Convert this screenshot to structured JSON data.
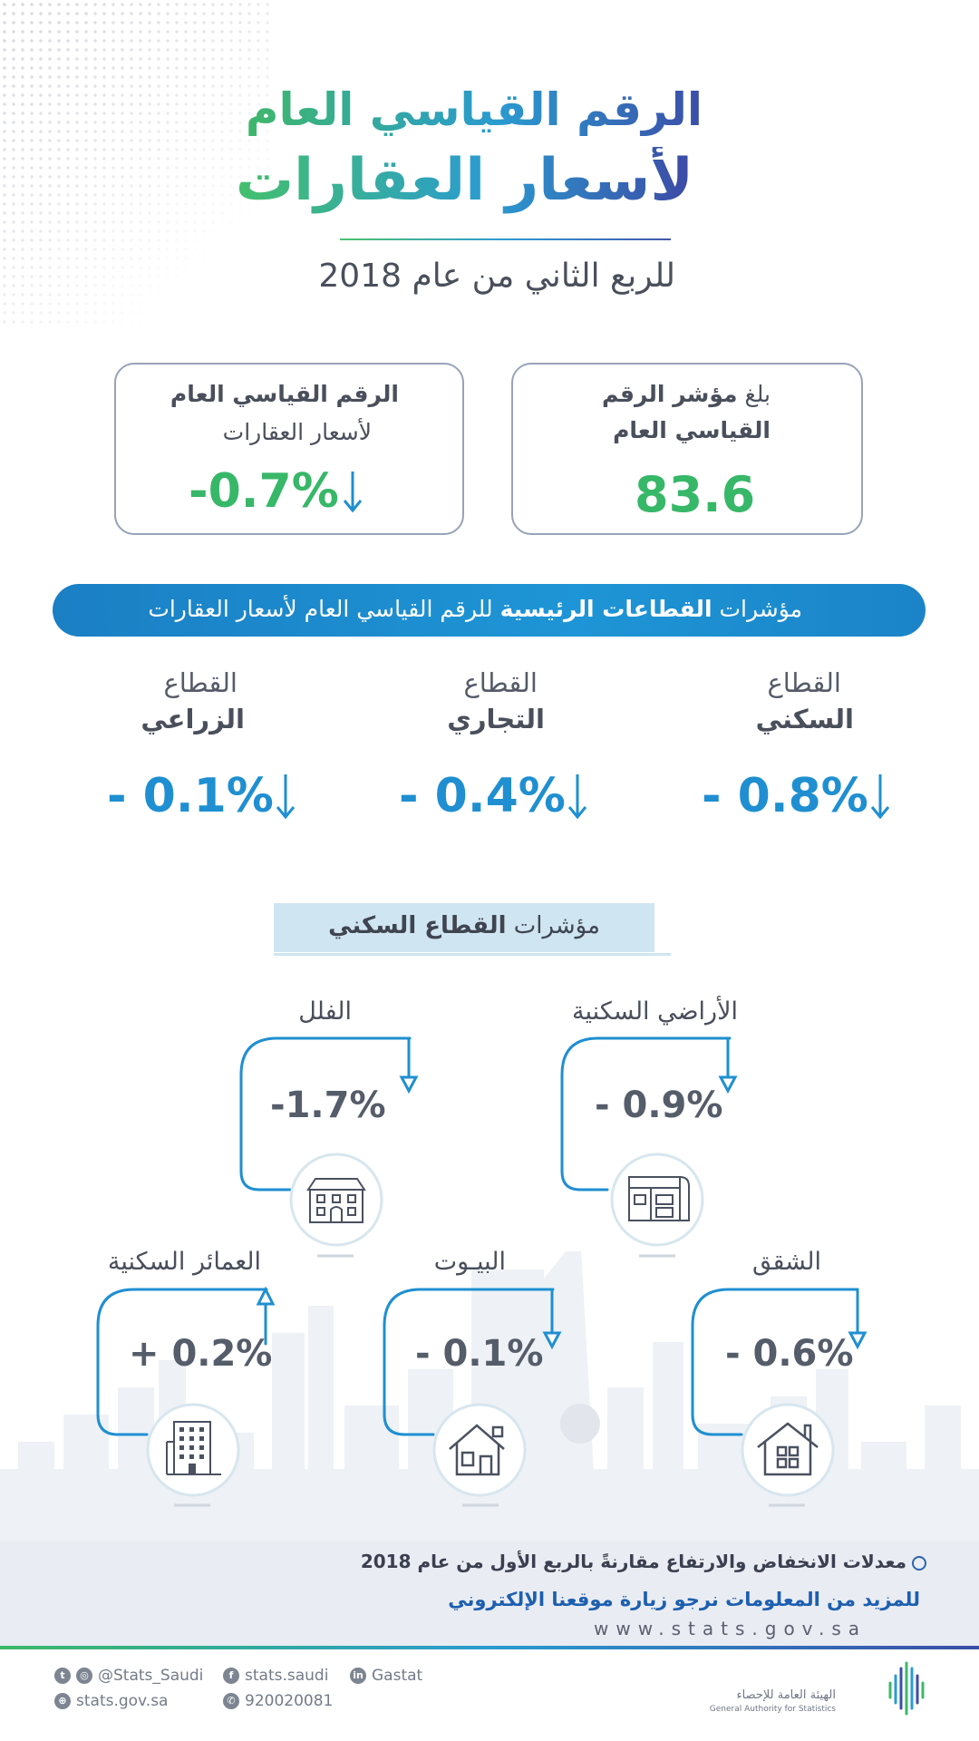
{
  "header": {
    "title_line1": "الرقم القياسي العام",
    "title_line2": "لأسعار العقارات",
    "subtitle": "للربع الثاني من عام 2018"
  },
  "cards": {
    "change": {
      "line1": "الرقم القياسي العام",
      "line2": "لأسعار العقارات",
      "value": "-0.7%"
    },
    "index": {
      "prefix": "بلغ",
      "bold1": "مؤشر الرقم",
      "line2": "القياسي العام",
      "value": "83.6"
    }
  },
  "banner": {
    "pre": "مؤشرات",
    "bold": "القطاعات الرئيسية",
    "post": "للرقم القياسي العام لأسعار العقارات"
  },
  "sectors": [
    {
      "line1": "القطاع",
      "line2": "السكني",
      "value": "- 0.8%"
    },
    {
      "line1": "القطاع",
      "line2": "التجاري",
      "value": "- 0.4%"
    },
    {
      "line1": "القطاع",
      "line2": "الزراعي",
      "value": "- 0.1%"
    }
  ],
  "residential": {
    "header_pre": "مؤشرات",
    "header_bold": "القطاع السكني",
    "items": [
      {
        "label": "الأراضي السكنية",
        "value": "- 0.9%",
        "direction": "down",
        "icon": "land-plan-icon"
      },
      {
        "label": "الفلل",
        "value": "-1.7%",
        "direction": "down",
        "icon": "villa-icon"
      },
      {
        "label": "الشقق",
        "value": "- 0.6%",
        "direction": "down",
        "icon": "apartment-icon"
      },
      {
        "label": "البيـوت",
        "value": "- 0.1%",
        "direction": "down",
        "icon": "house-icon"
      },
      {
        "label": "العمائر السكنية",
        "value": "+ 0.2%",
        "direction": "up",
        "icon": "building-icon"
      }
    ]
  },
  "footer": {
    "note": "معدلات الانخفاض والارتفاع مقارنةً بالربع الأول من عام 2018",
    "more_info": "للمزيد من المعلومات نرجو زيارة موقعنا الإلكتروني",
    "website": "www.stats.gov.sa",
    "social": {
      "twitter_instagram": "@Stats_Saudi",
      "facebook": "stats.saudi",
      "linkedin": "Gastat",
      "web": "stats.gov.sa",
      "phone": "920020081"
    },
    "logo_ar": "الهيئة العامة للإحصاء",
    "logo_en": "General Authority for Statistics"
  },
  "colors": {
    "green": "#37b768",
    "blue": "#1f8fd1",
    "navy": "#3c4ea8",
    "text": "#4a4f5c"
  }
}
